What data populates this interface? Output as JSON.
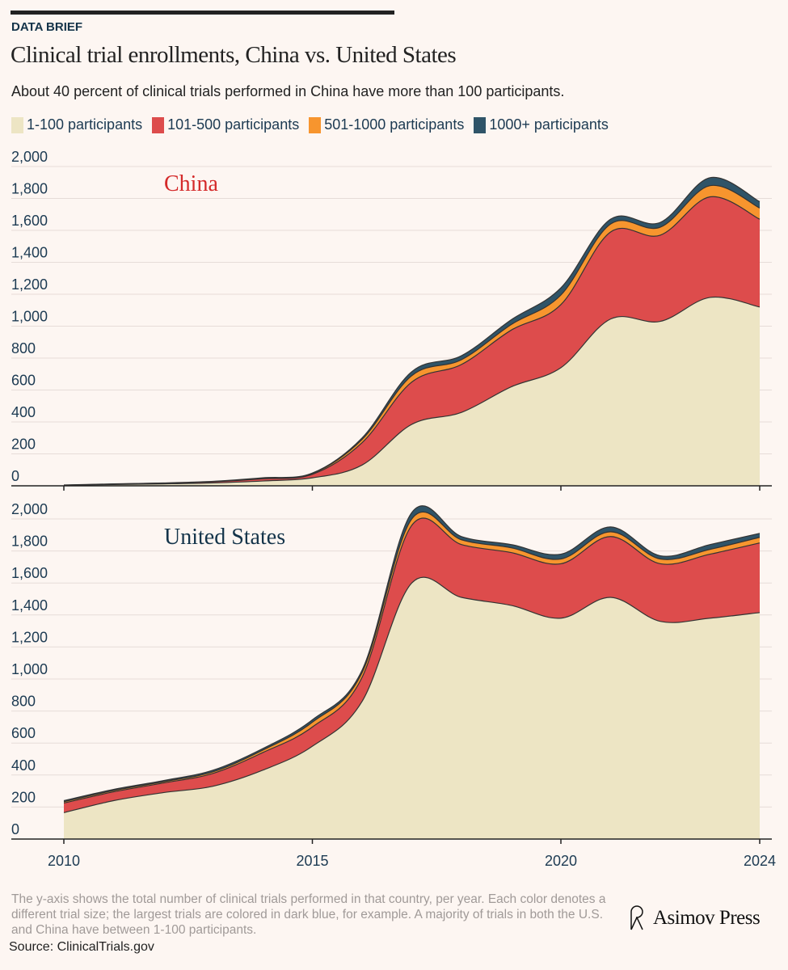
{
  "header": {
    "kicker": "DATA BRIEF",
    "title": "Clinical trial enrollments, China vs. United States",
    "subtitle": "About 40 percent of clinical trials performed in China have more than 100 participants."
  },
  "legend": [
    {
      "label": "1-100 participants",
      "color": "#ede5c4"
    },
    {
      "label": "101-500 participants",
      "color": "#dd4c4c"
    },
    {
      "label": "501-1000 participants",
      "color": "#f7952e"
    },
    {
      "label": "1000+ participants",
      "color": "#2f5468"
    }
  ],
  "footer": {
    "note": "The y-axis shows the total number of clinical trials performed in that country, per year. Each color denotes a different trial size; the largest trials are colored in dark blue, for example. A majority of trials in both the U.S. and China have between 1-100 participants.",
    "source": "Source: ClinicalTrials.gov",
    "brand": "Asimov Press"
  },
  "chart_data": [
    {
      "type": "area",
      "stacked": true,
      "title": "China",
      "x": [
        2010,
        2011,
        2012,
        2013,
        2014,
        2015,
        2016,
        2017,
        2018,
        2019,
        2020,
        2021,
        2022,
        2023,
        2024
      ],
      "ylim": [
        0,
        2000
      ],
      "yticks": [
        0,
        200,
        400,
        600,
        800,
        1000,
        1200,
        1400,
        1600,
        1800,
        2000
      ],
      "ytick_labels": [
        "0",
        "200",
        "400",
        "600",
        "800",
        "1,000",
        "1,200",
        "1,400",
        "1,600",
        "1,800",
        "2,000"
      ],
      "series": [
        {
          "name": "1-100 participants",
          "values": [
            3,
            8,
            12,
            18,
            30,
            50,
            130,
            385,
            460,
            620,
            740,
            1045,
            1030,
            1180,
            1120
          ]
        },
        {
          "name": "101-500 participants",
          "values": [
            1,
            2,
            4,
            7,
            14,
            22,
            140,
            265,
            300,
            355,
            395,
            545,
            540,
            630,
            550
          ]
        },
        {
          "name": "501-1000 participants",
          "values": [
            0,
            1,
            1,
            2,
            3,
            5,
            20,
            40,
            30,
            35,
            60,
            50,
            50,
            70,
            70
          ]
        },
        {
          "name": "1000+ participants",
          "values": [
            1,
            1,
            1,
            1,
            3,
            3,
            10,
            25,
            25,
            30,
            45,
            30,
            30,
            50,
            40
          ]
        }
      ]
    },
    {
      "type": "area",
      "stacked": true,
      "title": "United States",
      "x": [
        2010,
        2011,
        2012,
        2013,
        2014,
        2015,
        2016,
        2017,
        2018,
        2019,
        2020,
        2021,
        2022,
        2023,
        2024
      ],
      "ylim": [
        0,
        2000
      ],
      "yticks": [
        0,
        200,
        400,
        600,
        800,
        1000,
        1200,
        1400,
        1600,
        1800,
        2000
      ],
      "ytick_labels": [
        "0",
        "200",
        "400",
        "600",
        "800",
        "1,000",
        "1,200",
        "1,400",
        "1,600",
        "1,800",
        "2,000"
      ],
      "xtick_values": [
        2010,
        2015,
        2020,
        2024
      ],
      "xtick_labels": [
        "2010",
        "2015",
        "2020",
        "2024"
      ],
      "series": [
        {
          "name": "1-100 participants",
          "values": [
            165,
            240,
            290,
            330,
            430,
            580,
            860,
            1600,
            1510,
            1460,
            1380,
            1510,
            1360,
            1380,
            1415
          ]
        },
        {
          "name": "101-500 participants",
          "values": [
            60,
            55,
            60,
            80,
            110,
            120,
            150,
            360,
            330,
            330,
            340,
            380,
            360,
            400,
            435
          ]
        },
        {
          "name": "501-1000 participants",
          "values": [
            8,
            8,
            8,
            10,
            15,
            30,
            30,
            40,
            30,
            30,
            30,
            30,
            30,
            30,
            35
          ]
        },
        {
          "name": "1000+ participants",
          "values": [
            7,
            7,
            7,
            10,
            10,
            15,
            15,
            40,
            20,
            20,
            30,
            30,
            20,
            30,
            25
          ]
        }
      ]
    }
  ]
}
